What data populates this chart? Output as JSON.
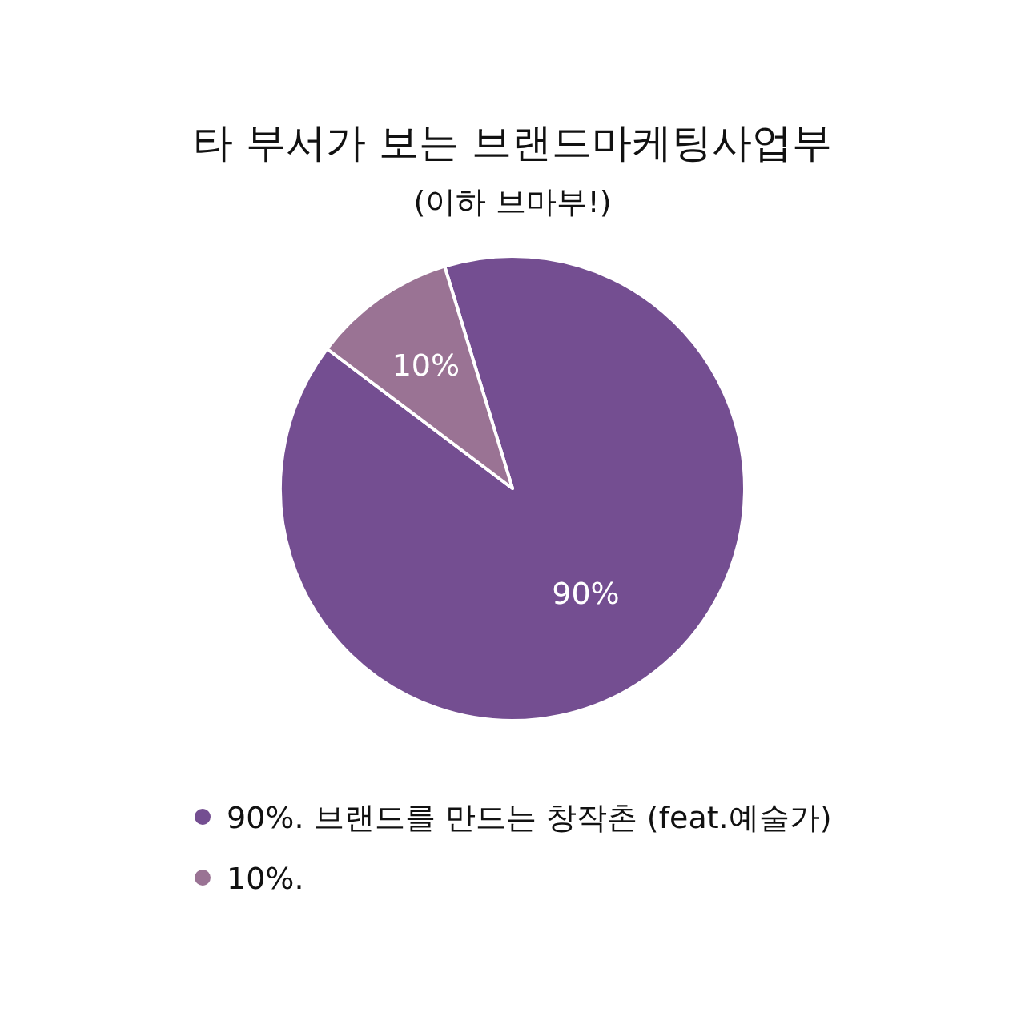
{
  "chart_data": {
    "type": "pie",
    "title": "타 부서가 보는 브랜드마케팅사업부",
    "subtitle": "(이하 브마부!)",
    "categories": [
      "90%. 브랜드를 만드는 창작촌 (feat.예술가)",
      "10%."
    ],
    "value_labels": [
      "90%",
      "10%"
    ],
    "values": [
      90,
      10
    ],
    "colors": [
      "#744e91",
      "#9a7394"
    ],
    "legend": "bottom"
  }
}
